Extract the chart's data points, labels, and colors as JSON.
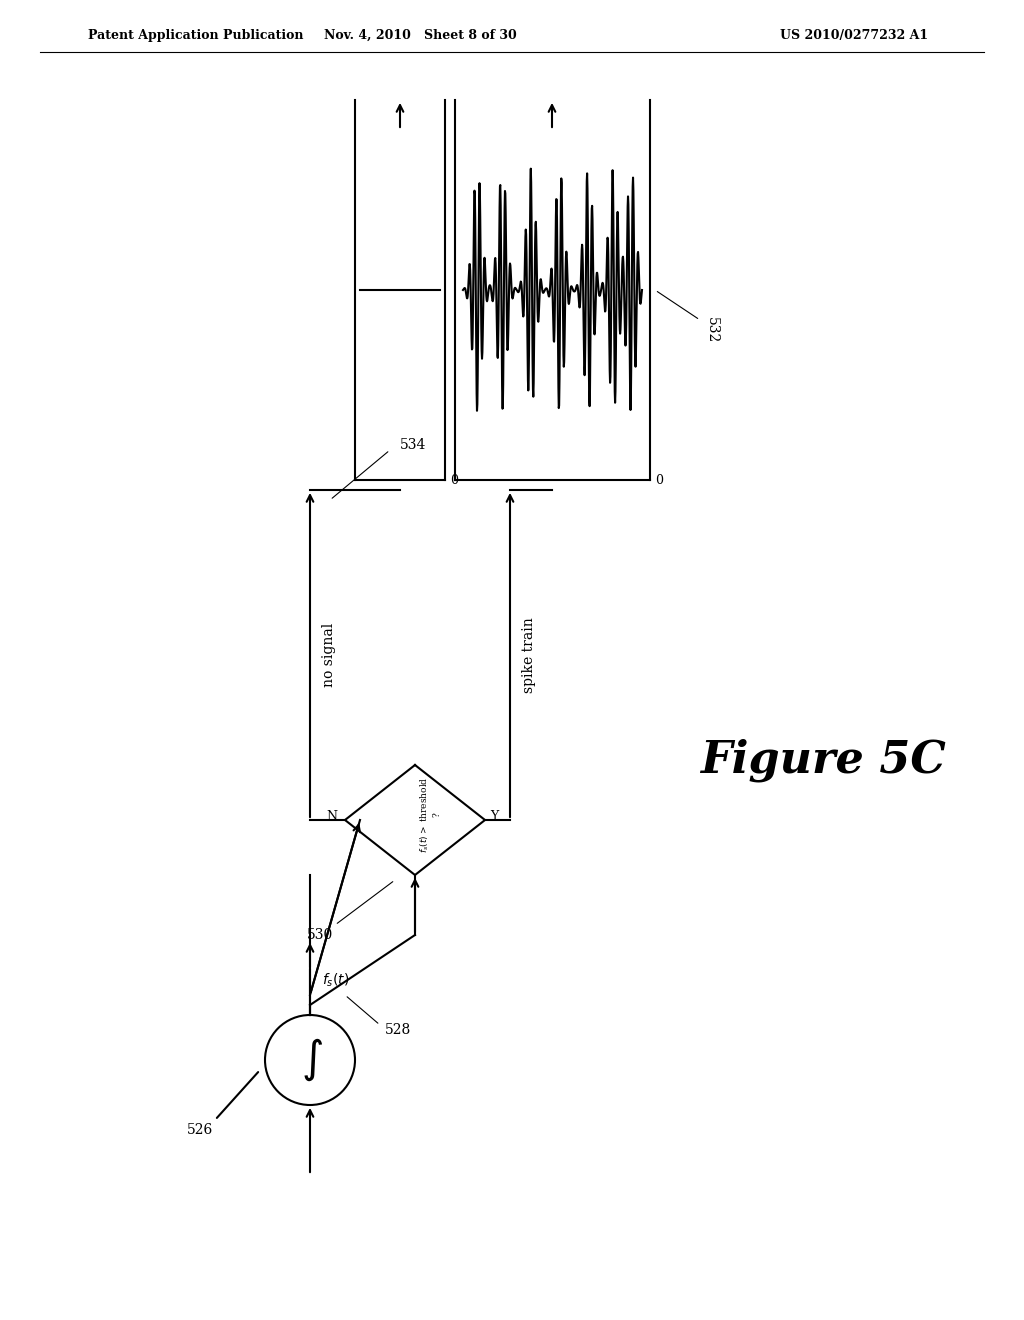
{
  "bg_color": "#ffffff",
  "line_color": "#000000",
  "header_left": "Patent Application Publication",
  "header_mid": "Nov. 4, 2010   Sheet 8 of 30",
  "header_right": "US 2010/0277232 A1",
  "figure_label": "Figure 5C",
  "label_526": "526",
  "label_528": "528",
  "label_530": "530",
  "label_532": "532",
  "label_534": "534",
  "text_fs_t": "f s(t)",
  "text_no_signal": "no signal",
  "text_spike_train": "spike train",
  "diamond_text": "f s(t) > threshold\n?",
  "diamond_N": "N",
  "diamond_Y": "Y"
}
